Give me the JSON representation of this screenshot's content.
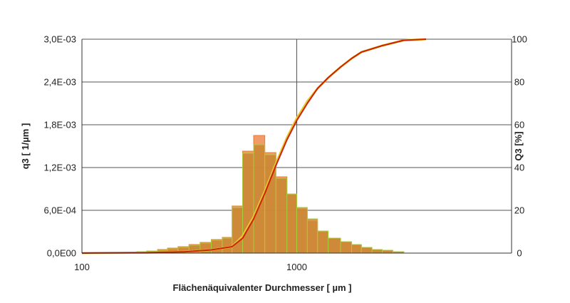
{
  "chart_data": {
    "type": "bar",
    "title": "",
    "xlabel": "Flächenäquivalenter Durchmesser [ µm ]",
    "ylabel_left": "q3 [ 1/µm ]",
    "ylabel_right": "Q3 [%]",
    "x_scale": "log",
    "xlim": [
      100,
      10000
    ],
    "x_ticks": [
      100,
      1000
    ],
    "x_tick_labels": [
      "100",
      "1000"
    ],
    "ylim_left": [
      0,
      0.003
    ],
    "y_ticks_left": [
      "0,0E00",
      "6,0E-04",
      "1,2E-03",
      "1,8E-03",
      "2,4E-03",
      "3,0E-03"
    ],
    "ylim_right": [
      0,
      100
    ],
    "y_ticks_right": [
      "0",
      "20",
      "40",
      "60",
      "80",
      "100"
    ],
    "grid": true,
    "legend": "none",
    "colors": {
      "bar_fill": "#c8872f",
      "bar_edge_a": "#f07a30",
      "bar_edge_b": "#a8cc3c",
      "curve_a": "#e8c830",
      "curve_b": "#cc2200",
      "grid": "#555555"
    },
    "histogram_bins": [
      160,
      180,
      200,
      225,
      250,
      280,
      315,
      355,
      400,
      450,
      500,
      560,
      630,
      710,
      800,
      900,
      1000,
      1120,
      1250,
      1400,
      1600,
      1800,
      2000,
      2240,
      2500,
      2800,
      3150
    ],
    "series": [
      {
        "values": [
          1e-05,
          2e-05,
          3e-05,
          5e-05,
          7e-05,
          9e-05,
          0.00012,
          0.00015,
          0.00019,
          0.00022,
          0.00066,
          0.00143,
          0.00165,
          0.00141,
          0.00107,
          0.00081,
          0.00061,
          0.00044,
          0.00029,
          0.0002,
          0.00015,
          0.00011,
          7e-05,
          4e-05,
          3e-05,
          2e-05
        ]
      },
      {
        "values": [
          1e-05,
          2e-05,
          3e-05,
          4e-05,
          6e-05,
          8e-05,
          0.00011,
          0.00014,
          0.00018,
          0.00021,
          0.00064,
          0.0014,
          0.00152,
          0.00138,
          0.00105,
          0.00083,
          0.00064,
          0.00048,
          0.00031,
          0.00021,
          0.00016,
          0.00012,
          8e-05,
          5e-05,
          4e-05,
          2e-05
        ]
      }
    ],
    "cumulative_series": [
      {
        "x": [
          100,
          200,
          300,
          400,
          500,
          560,
          630,
          710,
          800,
          900,
          1000,
          1120,
          1250,
          1400,
          1600,
          1800,
          2000,
          2500,
          3150,
          4000
        ],
        "y": [
          0,
          0.2,
          0.6,
          1.5,
          3,
          8,
          17,
          29,
          42,
          54,
          63,
          71,
          77,
          82,
          87,
          91,
          94,
          97,
          99.5,
          100
        ]
      },
      {
        "x": [
          100,
          200,
          300,
          400,
          500,
          560,
          630,
          710,
          800,
          900,
          1000,
          1120,
          1250,
          1400,
          1600,
          1800,
          2000,
          2500,
          3150,
          4000
        ],
        "y": [
          0,
          0.2,
          0.6,
          1.5,
          3,
          7,
          16,
          28,
          41,
          53,
          62,
          70,
          77,
          82,
          87,
          91,
          94,
          97,
          99.5,
          100
        ]
      }
    ]
  }
}
